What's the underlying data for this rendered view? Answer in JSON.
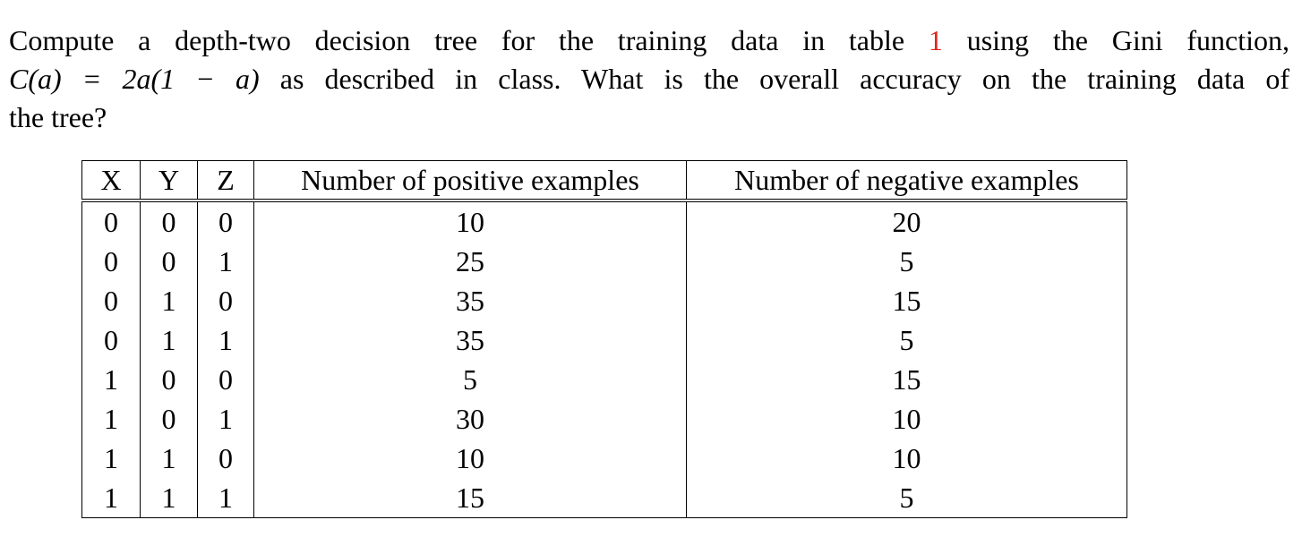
{
  "question": {
    "line1_before": "Compute a depth-two decision tree for the training data in table",
    "line1_ref": "1",
    "line1_after": "using the Gini function,",
    "line2_math": "C(a) = 2a(1 − a)",
    "line2_text": "as described in class. What is the overall accuracy on the training data of",
    "line3": "the tree?"
  },
  "table": {
    "headers": [
      "X",
      "Y",
      "Z",
      "Number of positive examples",
      "Number of negative examples"
    ],
    "rows": [
      [
        "0",
        "0",
        "0",
        "10",
        "20"
      ],
      [
        "0",
        "0",
        "1",
        "25",
        "5"
      ],
      [
        "0",
        "1",
        "0",
        "35",
        "15"
      ],
      [
        "0",
        "1",
        "1",
        "35",
        "5"
      ],
      [
        "1",
        "0",
        "0",
        "5",
        "15"
      ],
      [
        "1",
        "0",
        "1",
        "30",
        "10"
      ],
      [
        "1",
        "1",
        "0",
        "10",
        "10"
      ],
      [
        "1",
        "1",
        "1",
        "15",
        "5"
      ]
    ]
  },
  "colors": {
    "reference_link": "#e0261b",
    "text": "#000000",
    "background": "#ffffff"
  }
}
